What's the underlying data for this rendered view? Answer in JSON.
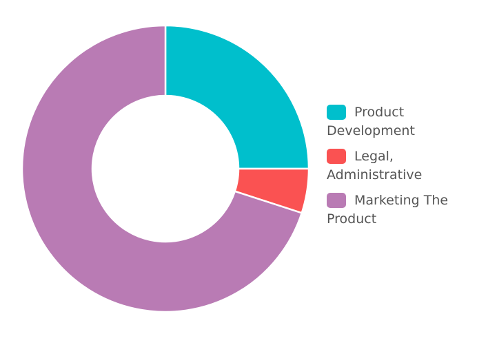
{
  "chart_data": {
    "type": "pie",
    "donut": true,
    "title": "",
    "legend_position": "right",
    "slices": [
      {
        "label": "Product Development",
        "value": 25,
        "color": "#00BFCC"
      },
      {
        "label": "Legal, Administrative",
        "value": 5,
        "color": "#FA5252"
      },
      {
        "label": "Marketing The Product",
        "value": 70,
        "color": "#B97BB4"
      }
    ]
  }
}
